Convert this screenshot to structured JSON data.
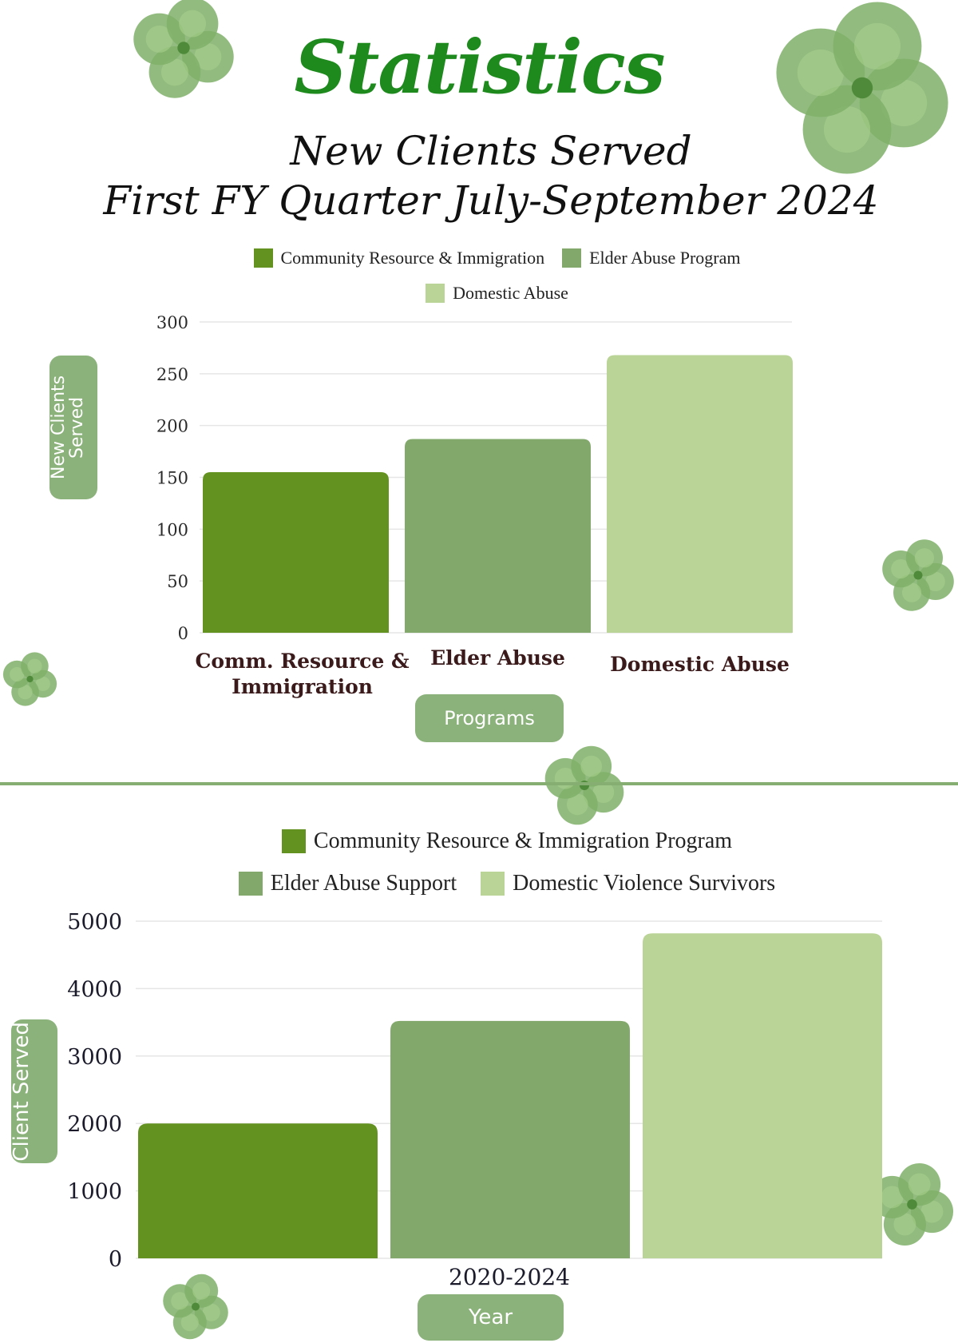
{
  "title": "Statistics",
  "subtitle_line1": "New Clients Served",
  "subtitle_line2": "First FY Quarter July-September 2024",
  "colors": {
    "title": "#1e8a1e",
    "series_dark": "#649220",
    "series_mid": "#82a86c",
    "series_light": "#bad396",
    "pill": "#8cb27b",
    "clover": "#7fb069"
  },
  "icons": [
    "clover-icon"
  ],
  "chart1_legend": [
    "Community Resource & Immigration",
    "Elder Abuse Program",
    "Domestic Abuse"
  ],
  "chart1_ylabel": "New Clients Served",
  "chart1_xlabel": "Programs",
  "chart2_legend": [
    "Community Resource & Immigration Program",
    "Elder Abuse Support",
    "Domestic Violence Survivors"
  ],
  "chart2_ylabel": "Client Served",
  "chart2_xlabel": "Year",
  "chart_data": [
    {
      "type": "bar",
      "title": "New Clients Served First FY Quarter July-September 2024",
      "categories": [
        "Comm. Resource & Immigration",
        "Elder Abuse",
        "Domestic Abuse"
      ],
      "values": [
        155,
        187,
        268
      ],
      "ylim": [
        0,
        300
      ],
      "yticks": [
        0,
        50,
        100,
        150,
        200,
        250,
        300
      ],
      "xlabel": "Programs",
      "ylabel": "New Clients Served",
      "grid": true,
      "legend": "top-center"
    },
    {
      "type": "bar",
      "categories": [
        "2020-2024"
      ],
      "series": [
        {
          "name": "Community Resource & Immigration Program",
          "values": [
            2000
          ]
        },
        {
          "name": "Elder Abuse Support",
          "values": [
            3520
          ]
        },
        {
          "name": "Domestic Violence Survivors",
          "values": [
            4820
          ]
        }
      ],
      "ylim": [
        0,
        5000
      ],
      "yticks": [
        0,
        1000,
        2000,
        3000,
        4000,
        5000
      ],
      "xlabel": "Year",
      "ylabel": "Client Served",
      "grid": true,
      "legend": "top-center"
    }
  ]
}
